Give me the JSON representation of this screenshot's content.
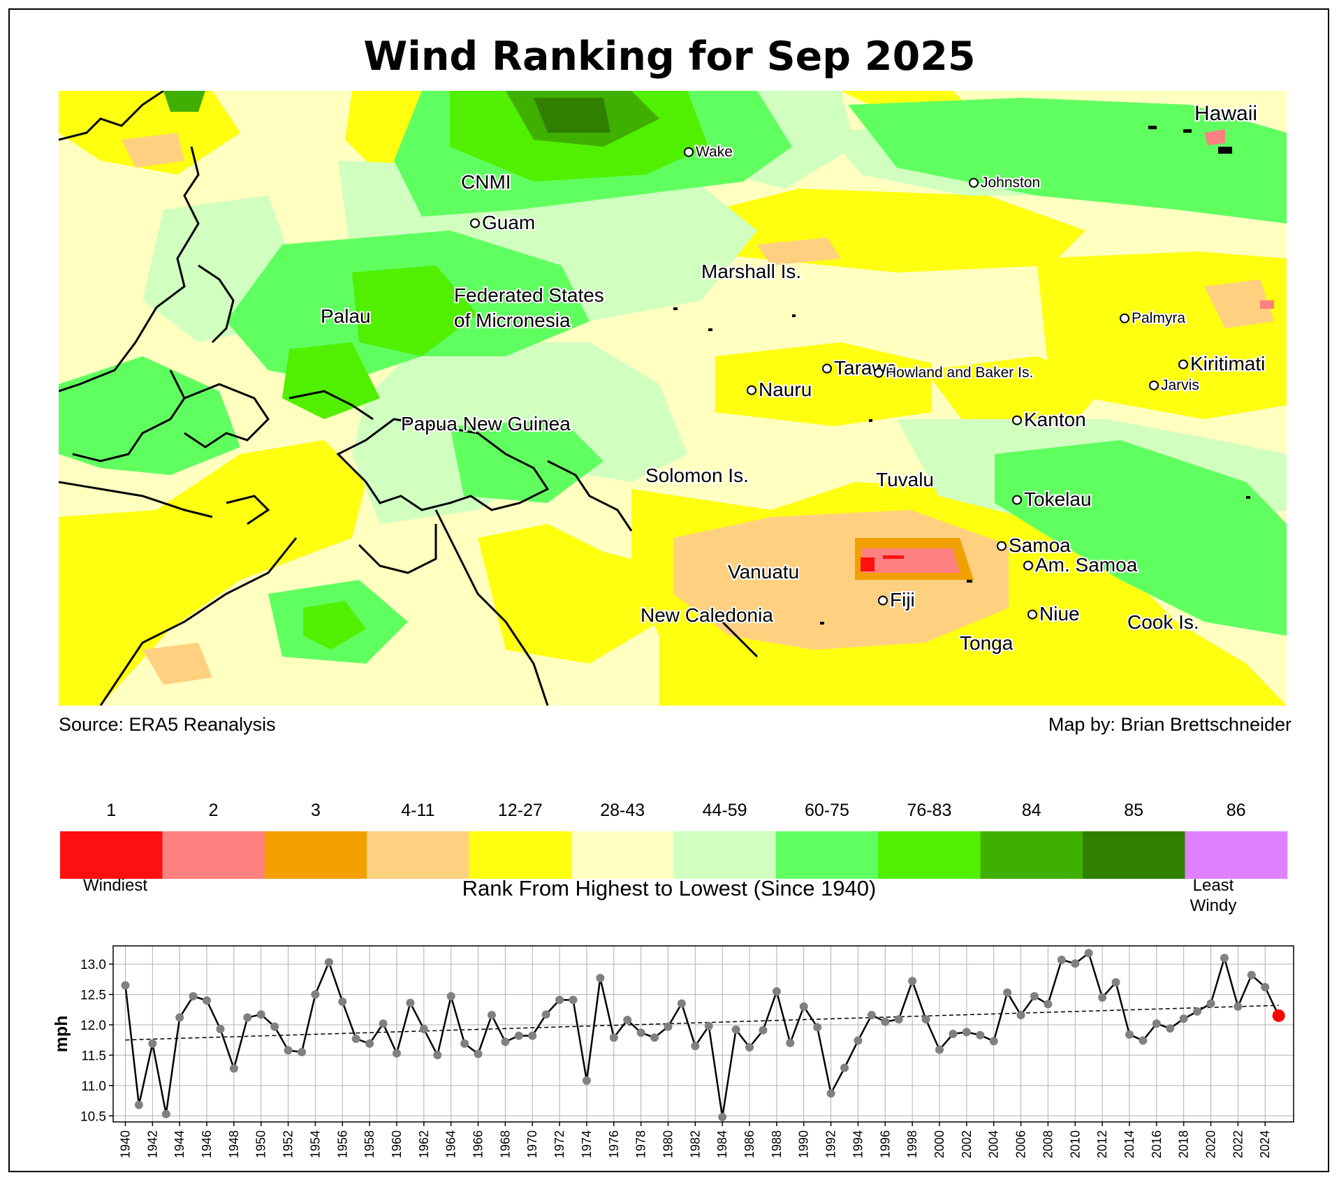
{
  "title": "Wind Ranking for Sep 2025",
  "source": "Source: ERA5 Reanalysis",
  "credit": "Map by: Brian Brettschneider",
  "map_labels": [
    {
      "text": "Hawaii",
      "size": 30,
      "dot": false
    },
    {
      "text": "Wake",
      "size": 21,
      "dot": true
    },
    {
      "text": "Johnston",
      "size": 21,
      "dot": true
    },
    {
      "text": "CNMI",
      "size": 28,
      "dot": false
    },
    {
      "text": "Guam",
      "size": 28,
      "dot": true
    },
    {
      "text": "Marshall Is.",
      "size": 28,
      "dot": false
    },
    {
      "text": "Federated States",
      "size": 28,
      "dot": false
    },
    {
      "text": "of Micronesia",
      "size": 28,
      "dot": false
    },
    {
      "text": "Palau",
      "size": 28,
      "dot": false
    },
    {
      "text": "Palmyra",
      "size": 21,
      "dot": true
    },
    {
      "text": "Kiritimati",
      "size": 28,
      "dot": true
    },
    {
      "text": "Jarvis",
      "size": 21,
      "dot": true
    },
    {
      "text": "Tarawa",
      "size": 28,
      "dot": true
    },
    {
      "text": "Howland and Baker Is.",
      "size": 21,
      "dot": true
    },
    {
      "text": "Nauru",
      "size": 28,
      "dot": true
    },
    {
      "text": "Kanton",
      "size": 28,
      "dot": true
    },
    {
      "text": "Papua New Guinea",
      "size": 28,
      "dot": false
    },
    {
      "text": "Solomon Is.",
      "size": 28,
      "dot": false
    },
    {
      "text": "Tuvalu",
      "size": 28,
      "dot": false
    },
    {
      "text": "Tokelau",
      "size": 28,
      "dot": true
    },
    {
      "text": "Samoa",
      "size": 28,
      "dot": true
    },
    {
      "text": "Am. Samoa",
      "size": 28,
      "dot": true
    },
    {
      "text": "Vanuatu",
      "size": 28,
      "dot": false
    },
    {
      "text": "Fiji",
      "size": 28,
      "dot": true
    },
    {
      "text": "Niue",
      "size": 28,
      "dot": true
    },
    {
      "text": "New Caledonia",
      "size": 28,
      "dot": false
    },
    {
      "text": "Cook Is.",
      "size": 28,
      "dot": false
    },
    {
      "text": "Tonga",
      "size": 28,
      "dot": false
    }
  ],
  "legend": {
    "title": "Rank From Highest to Lowest (Since 1940)",
    "low_label": "Windiest",
    "high_label_1": "Least",
    "high_label_2": "Windy",
    "bins": [
      {
        "label": "1",
        "color": "#ff1010"
      },
      {
        "label": "2",
        "color": "#ff8080"
      },
      {
        "label": "3",
        "color": "#f2a000"
      },
      {
        "label": "4-11",
        "color": "#ffd080"
      },
      {
        "label": "12-27",
        "color": "#ffff10"
      },
      {
        "label": "28-43",
        "color": "#ffffc0"
      },
      {
        "label": "44-59",
        "color": "#d0ffc0"
      },
      {
        "label": "60-75",
        "color": "#60ff60"
      },
      {
        "label": "76-83",
        "color": "#50f000"
      },
      {
        "label": "84",
        "color": "#40b000"
      },
      {
        "label": "85",
        "color": "#308000"
      },
      {
        "label": "86",
        "color": "#e080ff"
      }
    ]
  },
  "chart_data": {
    "type": "line",
    "ylabel": "mph",
    "xlabel": "",
    "ylim": [
      10.4,
      13.3
    ],
    "yticks": [
      "10.5",
      "11.0",
      "11.5",
      "12.0",
      "12.5",
      "13.0"
    ],
    "xticks": [
      "1940",
      "1942",
      "1944",
      "1946",
      "1948",
      "1950",
      "1952",
      "1954",
      "1956",
      "1958",
      "1960",
      "1962",
      "1964",
      "1966",
      "1968",
      "1970",
      "1972",
      "1974",
      "1976",
      "1978",
      "1980",
      "1982",
      "1984",
      "1986",
      "1988",
      "1990",
      "1992",
      "1994",
      "1996",
      "1998",
      "2000",
      "2002",
      "2004",
      "2006",
      "2008",
      "2010",
      "2012",
      "2014",
      "2016",
      "2018",
      "2020",
      "2022",
      "2024"
    ],
    "grid": true,
    "x": [
      1940,
      1941,
      1942,
      1943,
      1944,
      1945,
      1946,
      1947,
      1948,
      1949,
      1950,
      1951,
      1952,
      1953,
      1954,
      1955,
      1956,
      1957,
      1958,
      1959,
      1960,
      1961,
      1962,
      1963,
      1964,
      1965,
      1966,
      1967,
      1968,
      1969,
      1970,
      1971,
      1972,
      1973,
      1974,
      1975,
      1976,
      1977,
      1978,
      1979,
      1980,
      1981,
      1982,
      1983,
      1984,
      1985,
      1986,
      1987,
      1988,
      1989,
      1990,
      1991,
      1992,
      1993,
      1994,
      1995,
      1996,
      1997,
      1998,
      1999,
      2000,
      2001,
      2002,
      2003,
      2004,
      2005,
      2006,
      2007,
      2008,
      2009,
      2010,
      2011,
      2012,
      2013,
      2014,
      2015,
      2016,
      2017,
      2018,
      2019,
      2020,
      2021,
      2022,
      2023,
      2024,
      2025
    ],
    "values": [
      12.65,
      10.68,
      11.69,
      10.53,
      12.12,
      12.47,
      12.4,
      11.93,
      11.28,
      12.12,
      12.17,
      11.97,
      11.58,
      11.55,
      12.5,
      13.03,
      12.38,
      11.77,
      11.69,
      12.02,
      11.53,
      12.36,
      11.93,
      11.5,
      12.47,
      11.69,
      11.52,
      12.16,
      11.72,
      11.82,
      11.82,
      12.17,
      12.41,
      12.41,
      11.08,
      12.77,
      11.79,
      12.08,
      11.87,
      11.79,
      11.97,
      12.35,
      11.65,
      11.98,
      10.48,
      11.92,
      11.63,
      11.91,
      12.55,
      11.7,
      12.3,
      11.96,
      10.87,
      11.29,
      11.74,
      12.16,
      12.05,
      12.09,
      12.72,
      12.09,
      11.59,
      11.85,
      11.88,
      11.83,
      11.73,
      12.53,
      12.16,
      12.47,
      12.34,
      13.07,
      13.01,
      13.18,
      12.45,
      12.7,
      11.84,
      11.74,
      12.02,
      11.94,
      12.1,
      12.22,
      12.35,
      13.1,
      12.3,
      12.82,
      12.62,
      12.15
    ],
    "trend": [
      11.75,
      12.32
    ],
    "highlight_year": 2025,
    "highlight_color": "#ff0000",
    "marker_color": "#808080",
    "line_color": "#000000"
  }
}
